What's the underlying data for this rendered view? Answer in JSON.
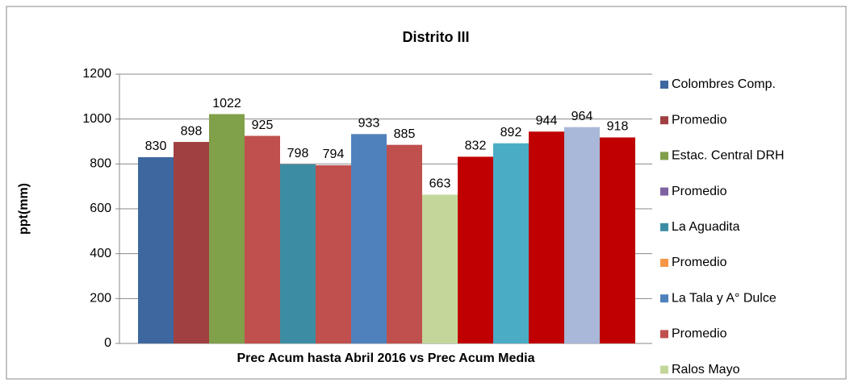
{
  "chart_data": {
    "type": "bar",
    "title": "Distrito III",
    "ylabel": "ppt(mm)",
    "xlabel": "Prec Acum hasta Abril 2016 vs Prec Acum Media",
    "values": [
      830,
      898,
      1022,
      925,
      798,
      794,
      933,
      885,
      663,
      832,
      892,
      944,
      964,
      918
    ],
    "colors": [
      "#3e679f",
      "#a04040",
      "#80a04a",
      "#c0504d",
      "#3c8da3",
      "#c0504d",
      "#4f81bd",
      "#c0504d",
      "#c4d79b",
      "#c00000",
      "#4bacc6",
      "#c00000",
      "#a9b8d8",
      "#c00000"
    ],
    "legend": [
      {
        "name": "Colombres Comp.",
        "color": "#3e679f"
      },
      {
        "name": "Promedio",
        "color": "#a04040"
      },
      {
        "name": "Estac. Central DRH",
        "color": "#80a04a"
      },
      {
        "name": "Promedio",
        "color": "#7f60a0"
      },
      {
        "name": "La Aguadita",
        "color": "#3c8da3"
      },
      {
        "name": "Promedio",
        "color": "#f79646"
      },
      {
        "name": "La Tala y A° Dulce",
        "color": "#4f81bd"
      },
      {
        "name": "Promedio",
        "color": "#c0504d"
      },
      {
        "name": "Ralos Mayo",
        "color": "#c4d79b"
      }
    ],
    "ylim": [
      0,
      1200
    ],
    "yticks": [
      0,
      200,
      400,
      600,
      800,
      1000,
      1200
    ],
    "grid": true
  }
}
